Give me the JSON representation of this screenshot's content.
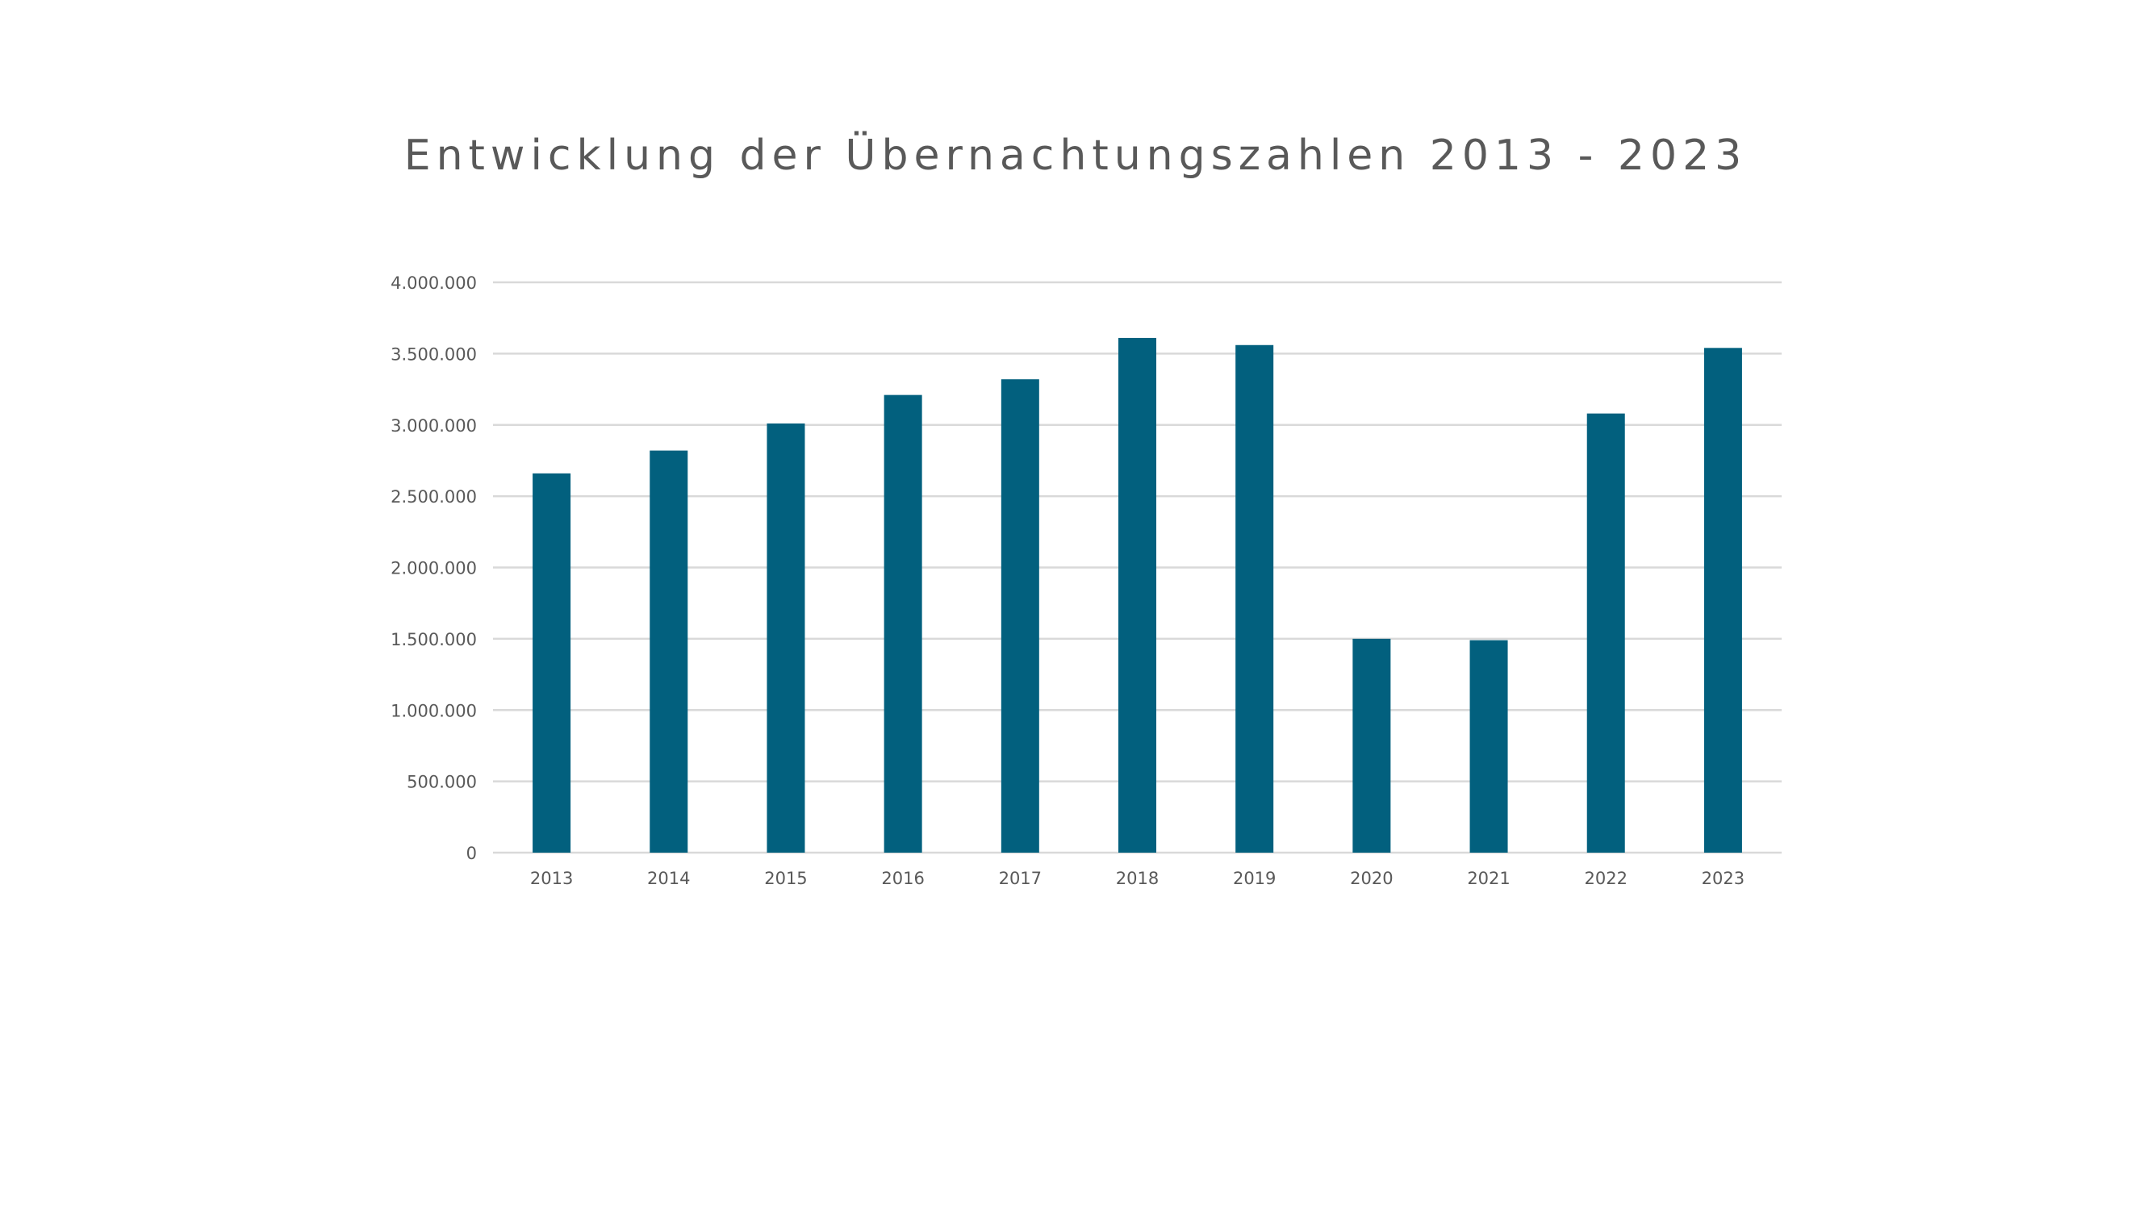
{
  "chart_data": {
    "type": "bar",
    "title": "Entwicklung der Übernachtungszahlen 2013 - 2023",
    "xlabel": "",
    "ylabel": "",
    "categories": [
      "2013",
      "2014",
      "2015",
      "2016",
      "2017",
      "2018",
      "2019",
      "2020",
      "2021",
      "2022",
      "2023"
    ],
    "series": [
      {
        "values": [
          2660000,
          2820000,
          3010000,
          3210000,
          3320000,
          3610000,
          3560000,
          1500000,
          1490000,
          3080000,
          3540000
        ]
      }
    ],
    "ylim": [
      0,
      4000000
    ],
    "yticks": [
      0,
      500000,
      1000000,
      1500000,
      2000000,
      2500000,
      3000000,
      3500000,
      4000000
    ],
    "ytick_labels": [
      "0",
      "500.000",
      "1.000.000",
      "1.500.000",
      "2.000.000",
      "2.500.000",
      "3.000.000",
      "3.500.000",
      "4.000.000"
    ],
    "grid": "horizontal",
    "legend": "none",
    "colors": {
      "bar": "#02607E",
      "grid": "#D9D9D9",
      "text": "#595959",
      "title": "#595959"
    }
  }
}
